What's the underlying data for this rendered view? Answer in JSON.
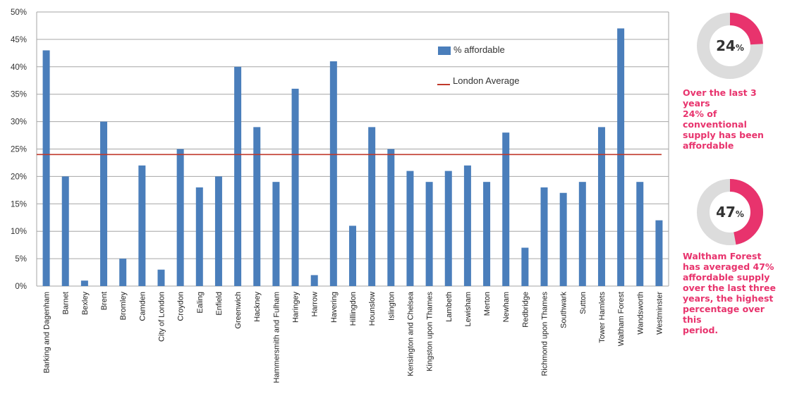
{
  "chart_data": {
    "type": "bar",
    "categories": [
      "Barking and Dagenham",
      "Barnet",
      "Bexley",
      "Brent",
      "Bromley",
      "Camden",
      "City of London",
      "Croydon",
      "Ealing",
      "Enfield",
      "Greenwich",
      "Hackney",
      "Hammersmith and Fulham",
      "Haringey",
      "Harrow",
      "Havering",
      "Hillingdon",
      "Hounslow",
      "Islington",
      "Kensington and Chelsea",
      "Kingston upon Thames",
      "Lambeth",
      "Lewisham",
      "Merton",
      "Newham",
      "Redbridge",
      "Richmond upon Thames",
      "Southwark",
      "Sutton",
      "Tower Hamlets",
      "Waltham Forest",
      "Wandsworth",
      "Westminster"
    ],
    "series": [
      {
        "name": "% affordable",
        "values": [
          43,
          20,
          1,
          30,
          5,
          22,
          3,
          25,
          18,
          20,
          40,
          29,
          19,
          36,
          2,
          41,
          11,
          29,
          25,
          21,
          19,
          21,
          22,
          19,
          28,
          7,
          18,
          17,
          19,
          29,
          47,
          19,
          12
        ]
      }
    ],
    "reference_line": {
      "name": "London Average",
      "value": 24
    },
    "ylim": [
      0,
      50
    ],
    "y_ticks": [
      "0%",
      "5%",
      "10%",
      "15%",
      "20%",
      "25%",
      "30%",
      "35%",
      "40%",
      "45%",
      "50%"
    ],
    "grid": true,
    "legend_position": "top-right",
    "colors": {
      "bar": "#4a7ebb",
      "line": "#c0392b",
      "grid": "#a6a6a6"
    }
  },
  "sidebar": {
    "donut1": {
      "value": 24,
      "number": "24",
      "unit": "%",
      "caption": [
        "Over the last 3 years",
        "24% of conventional",
        "supply has been",
        "affordable"
      ]
    },
    "donut2": {
      "value": 47,
      "number": "47",
      "unit": "%",
      "caption": [
        "Waltham Forest",
        "has averaged 47%",
        "affordable supply",
        "over the last three",
        "years, the highest",
        "percentage over this",
        "period."
      ]
    },
    "colors": {
      "accent": "#e8336d",
      "track": "#dcdcdc"
    }
  }
}
